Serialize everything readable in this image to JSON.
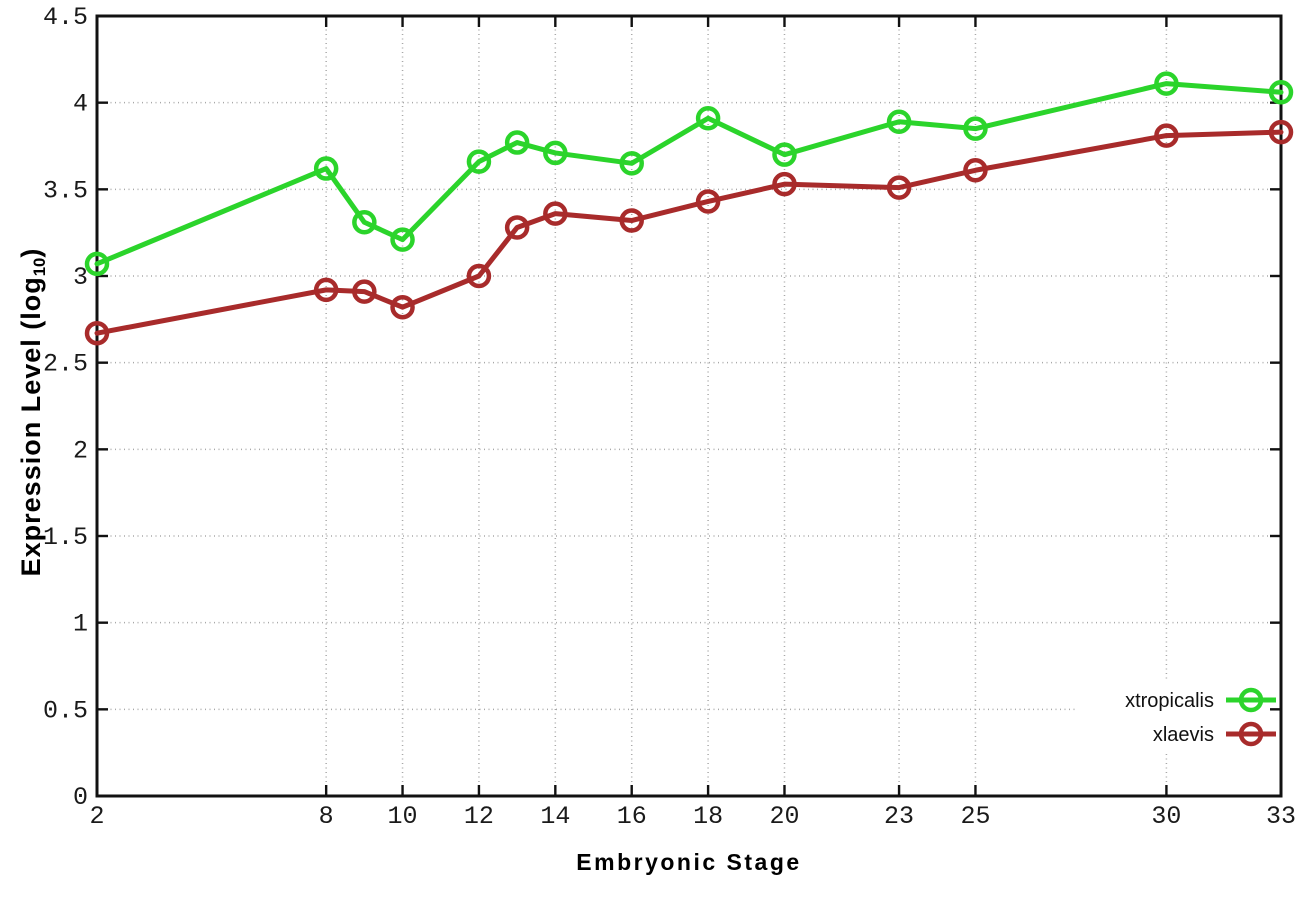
{
  "chart_data": {
    "type": "line",
    "title": "",
    "xlabel": "Embryonic Stage",
    "ylabel": "Expression Level (log10)",
    "ylabel_parts": {
      "main": "Expression Level (log",
      "sub": "10",
      "close": ")"
    },
    "x": [
      2,
      8,
      9,
      10,
      12,
      13,
      14,
      16,
      18,
      20,
      23,
      25,
      30,
      33
    ],
    "series": [
      {
        "name": "xtropicalis",
        "color": "#2bd42b",
        "values": [
          3.07,
          3.62,
          3.31,
          3.21,
          3.66,
          3.77,
          3.71,
          3.65,
          3.91,
          3.7,
          3.89,
          3.85,
          4.11,
          4.06
        ]
      },
      {
        "name": "xlaevis",
        "color": "#a82b2b",
        "values": [
          2.67,
          2.92,
          2.91,
          2.82,
          3.0,
          3.28,
          3.36,
          3.32,
          3.43,
          3.53,
          3.51,
          3.61,
          3.81,
          3.83
        ]
      }
    ],
    "xlim": [
      2,
      33
    ],
    "ylim": [
      0,
      4.5
    ],
    "x_ticks": [
      2,
      8,
      10,
      12,
      14,
      16,
      18,
      20,
      23,
      25,
      30,
      33
    ],
    "y_ticks": [
      0,
      0.5,
      1,
      1.5,
      2,
      2.5,
      3,
      3.5,
      4,
      4.5
    ],
    "grid": true,
    "legend_position": "bottom-right",
    "axis_color": "#111111",
    "grid_color": "#a8a8a8",
    "background": "#ffffff"
  }
}
